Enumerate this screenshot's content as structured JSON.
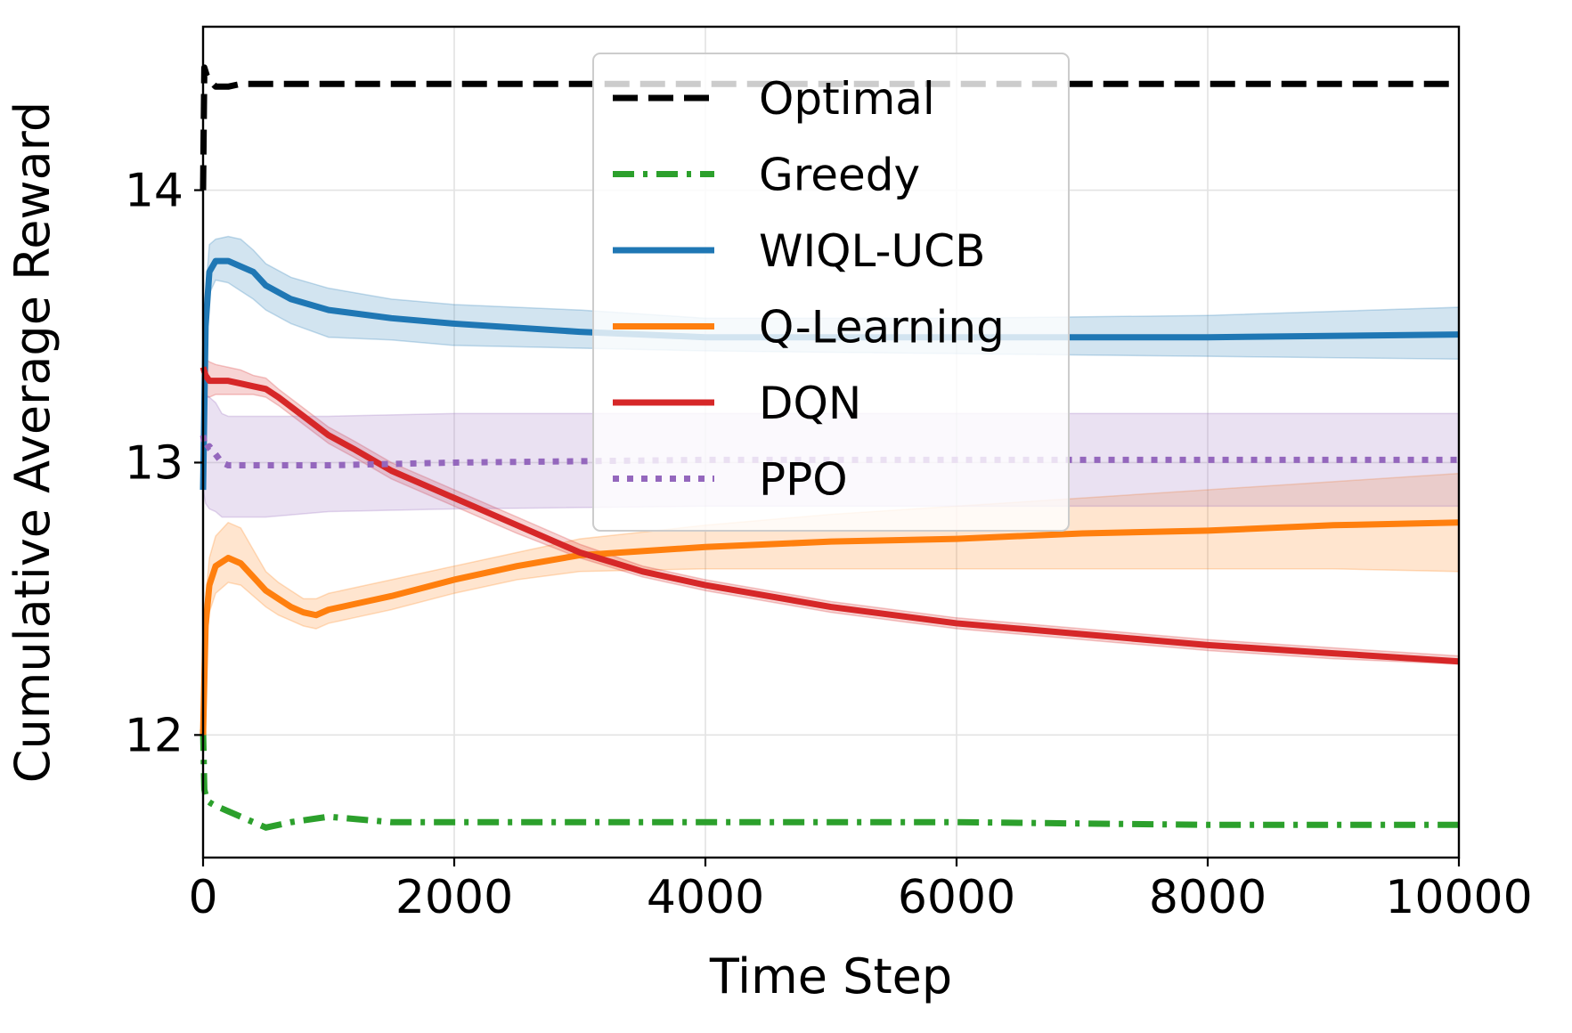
{
  "chart_data": {
    "type": "line",
    "title": "",
    "xlabel": "Time Step",
    "ylabel": "Cumulative Average Reward",
    "xlim": [
      0,
      10000
    ],
    "ylim": [
      11.55,
      14.6
    ],
    "xticks": [
      0,
      2000,
      4000,
      6000,
      8000,
      10000
    ],
    "yticks": [
      12,
      13,
      14
    ],
    "xtick_labels": [
      "0",
      "2000",
      "4000",
      "6000",
      "8000",
      "10000"
    ],
    "ytick_labels": [
      "12",
      "13",
      "14"
    ],
    "grid": true,
    "legend_position": "upper-center",
    "series": [
      {
        "name": "Optimal",
        "color": "#000000",
        "style": "dashed",
        "x": [
          0,
          10,
          30,
          60,
          100,
          150,
          200,
          300,
          500,
          1000,
          2000,
          4000,
          6000,
          8000,
          10000
        ],
        "y": [
          14.0,
          14.45,
          14.42,
          14.4,
          14.38,
          14.38,
          14.38,
          14.39,
          14.39,
          14.39,
          14.39,
          14.39,
          14.39,
          14.39,
          14.39
        ]
      },
      {
        "name": "Greedy",
        "color": "#2ca02c",
        "style": "dashdot",
        "x": [
          0,
          10,
          30,
          60,
          100,
          200,
          300,
          500,
          700,
          1000,
          1500,
          2000,
          4000,
          6000,
          8000,
          10000
        ],
        "y": [
          12.02,
          11.8,
          11.76,
          11.75,
          11.74,
          11.72,
          11.7,
          11.66,
          11.68,
          11.7,
          11.68,
          11.68,
          11.68,
          11.68,
          11.67,
          11.67
        ]
      },
      {
        "name": "WIQL-UCB",
        "color": "#1f77b4",
        "style": "solid",
        "x": [
          0,
          20,
          50,
          100,
          200,
          300,
          400,
          500,
          700,
          1000,
          1500,
          2000,
          3000,
          4000,
          6000,
          8000,
          10000
        ],
        "y": [
          12.9,
          13.5,
          13.7,
          13.74,
          13.74,
          13.72,
          13.7,
          13.65,
          13.6,
          13.56,
          13.53,
          13.51,
          13.48,
          13.46,
          13.46,
          13.46,
          13.47
        ],
        "band_lower": [
          12.8,
          13.4,
          13.62,
          13.67,
          13.66,
          13.63,
          13.6,
          13.56,
          13.51,
          13.46,
          13.45,
          13.43,
          13.42,
          13.41,
          13.4,
          13.39,
          13.38
        ],
        "band_upper": [
          13.0,
          13.62,
          13.8,
          13.82,
          13.83,
          13.82,
          13.78,
          13.73,
          13.68,
          13.64,
          13.6,
          13.58,
          13.56,
          13.53,
          13.53,
          13.54,
          13.57
        ]
      },
      {
        "name": "Q-Learning",
        "color": "#ff7f0e",
        "style": "solid",
        "x": [
          0,
          20,
          50,
          100,
          200,
          300,
          400,
          500,
          600,
          700,
          800,
          900,
          1000,
          1200,
          1500,
          2000,
          2500,
          3000,
          4000,
          5000,
          6000,
          7000,
          8000,
          9000,
          10000
        ],
        "y": [
          12.0,
          12.4,
          12.55,
          12.62,
          12.65,
          12.63,
          12.58,
          12.53,
          12.5,
          12.47,
          12.45,
          12.44,
          12.46,
          12.48,
          12.51,
          12.57,
          12.62,
          12.66,
          12.69,
          12.71,
          12.72,
          12.74,
          12.75,
          12.77,
          12.78
        ],
        "band_lower": [
          11.9,
          12.3,
          12.45,
          12.52,
          12.56,
          12.55,
          12.51,
          12.47,
          12.44,
          12.42,
          12.4,
          12.39,
          12.41,
          12.43,
          12.46,
          12.52,
          12.57,
          12.6,
          12.61,
          12.61,
          12.61,
          12.61,
          12.61,
          12.61,
          12.6
        ],
        "band_upper": [
          12.1,
          12.5,
          12.65,
          12.73,
          12.78,
          12.76,
          12.68,
          12.6,
          12.56,
          12.53,
          12.5,
          12.5,
          12.52,
          12.54,
          12.57,
          12.62,
          12.67,
          12.72,
          12.77,
          12.81,
          12.84,
          12.87,
          12.9,
          12.93,
          12.96
        ]
      },
      {
        "name": "DQN",
        "color": "#d62728",
        "style": "solid",
        "x": [
          0,
          20,
          50,
          100,
          200,
          300,
          400,
          500,
          600,
          800,
          1000,
          1200,
          1500,
          2000,
          2500,
          3000,
          3500,
          4000,
          5000,
          6000,
          7000,
          8000,
          9000,
          10000
        ],
        "y": [
          13.35,
          13.32,
          13.3,
          13.3,
          13.3,
          13.29,
          13.28,
          13.27,
          13.24,
          13.17,
          13.1,
          13.05,
          12.97,
          12.87,
          12.77,
          12.67,
          12.6,
          12.55,
          12.47,
          12.41,
          12.37,
          12.33,
          12.3,
          12.27
        ],
        "band_lower": [
          13.25,
          13.24,
          13.24,
          13.25,
          13.25,
          13.25,
          13.25,
          13.24,
          13.21,
          13.14,
          13.07,
          13.02,
          12.94,
          12.84,
          12.74,
          12.65,
          12.58,
          12.53,
          12.45,
          12.39,
          12.35,
          12.31,
          12.28,
          12.26
        ],
        "band_upper": [
          13.4,
          13.38,
          13.37,
          13.36,
          13.35,
          13.34,
          13.32,
          13.31,
          13.27,
          13.2,
          13.13,
          13.08,
          13.0,
          12.9,
          12.8,
          12.7,
          12.62,
          12.57,
          12.49,
          12.43,
          12.39,
          12.35,
          12.32,
          12.29
        ]
      },
      {
        "name": "PPO",
        "color": "#9467bd",
        "style": "dotted",
        "x": [
          0,
          20,
          50,
          100,
          150,
          200,
          300,
          500,
          1000,
          2000,
          4000,
          6000,
          8000,
          10000
        ],
        "y": [
          13.1,
          13.05,
          13.06,
          13.03,
          13.0,
          12.99,
          12.99,
          12.99,
          12.99,
          13.0,
          13.01,
          13.01,
          13.01,
          13.01
        ],
        "band_lower": [
          12.9,
          12.85,
          12.83,
          12.82,
          12.8,
          12.8,
          12.8,
          12.8,
          12.82,
          12.83,
          12.84,
          12.84,
          12.84,
          12.84
        ],
        "band_upper": [
          13.3,
          13.25,
          13.24,
          13.22,
          13.18,
          13.17,
          13.17,
          13.17,
          13.17,
          13.18,
          13.18,
          13.18,
          13.18,
          13.18
        ]
      }
    ]
  }
}
